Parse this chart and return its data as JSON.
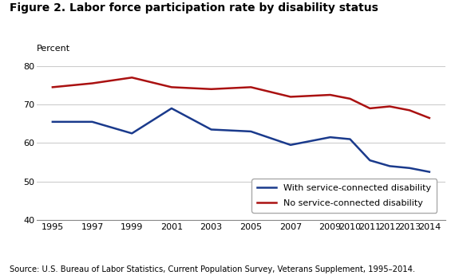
{
  "title": "Figure 2. Labor force participation rate by disability status",
  "ylabel": "Percent",
  "source": "Source: U.S. Bureau of Labor Statistics, Current Population Survey, Veterans Supplement, 1995–2014.",
  "years": [
    1995,
    1997,
    1999,
    2001,
    2003,
    2005,
    2007,
    2009,
    2010,
    2011,
    2012,
    2013,
    2014
  ],
  "with_disability": [
    65.5,
    65.5,
    62.5,
    69.0,
    63.5,
    63.0,
    59.5,
    61.5,
    61.0,
    55.5,
    54.0,
    53.5,
    52.5
  ],
  "no_disability": [
    74.5,
    75.5,
    77.0,
    74.5,
    74.0,
    74.5,
    72.0,
    72.5,
    71.5,
    69.0,
    69.5,
    68.5,
    66.5
  ],
  "with_disability_color": "#1a3a8c",
  "no_disability_color": "#aa1111",
  "ylim": [
    40,
    80
  ],
  "yticks": [
    40,
    50,
    60,
    70,
    80
  ],
  "legend_with": "With service-connected disability",
  "legend_no": "No service-connected disability",
  "background_color": "#ffffff",
  "grid_color": "#cccccc",
  "xlim_left": 1994.2,
  "xlim_right": 2014.8
}
